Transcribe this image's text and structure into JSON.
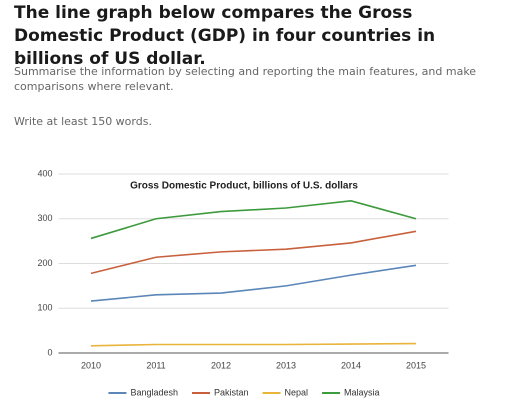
{
  "header": {
    "title": "The line graph below compares the Gross Domestic Product (GDP) in four countries in billions of US dollar.",
    "instructions": "Summarise the information by selecting and reporting the main features, and make comparisons where relevant.",
    "word_count": "Write at least 150 words."
  },
  "chart_data": {
    "type": "line",
    "title": "Gross Domestic Product, billions of U.S. dollars",
    "x": [
      2010,
      2011,
      2012,
      2013,
      2014,
      2015
    ],
    "xlim": [
      2009.5,
      2015.5
    ],
    "xticks": [
      2010,
      2011,
      2012,
      2013,
      2014,
      2015
    ],
    "ylim": [
      0,
      400
    ],
    "yticks": [
      0,
      100,
      200,
      300,
      400
    ],
    "grid": true,
    "legend": "bottom",
    "series": [
      {
        "name": "Bangladesh",
        "color": "#5a86b8",
        "values": [
          116,
          130,
          134,
          150,
          174,
          196
        ]
      },
      {
        "name": "Pakistan",
        "color": "#c8603c",
        "values": [
          178,
          214,
          226,
          232,
          246,
          272
        ]
      },
      {
        "name": "Nepal",
        "color": "#e9b43a",
        "values": [
          16,
          19,
          19,
          19,
          20,
          21
        ]
      },
      {
        "name": "Malaysia",
        "color": "#3d9a3d",
        "values": [
          256,
          300,
          316,
          324,
          340,
          300
        ]
      }
    ]
  }
}
